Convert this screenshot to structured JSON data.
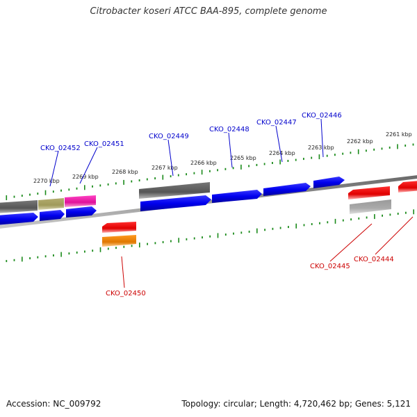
{
  "title": "Citrobacter koseri ATCC BAA-895, complete genome",
  "footer": {
    "accession": "Accession: NC_009792",
    "summary": "Topology: circular; Length: 4,720,462 bp; Genes: 5,121"
  },
  "colors": {
    "forward_label": "#0000cc",
    "reverse_label": "#cc0000",
    "ticks": "#1a8a1a",
    "backbone": "#808080"
  },
  "kbp_labels": [
    "2270 kbp",
    "2269 kbp",
    "2268 kbp",
    "2267 kbp",
    "2266 kbp",
    "2265 kbp",
    "2264 kbp",
    "2263 kbp",
    "2262 kbp",
    "2261 kbp"
  ],
  "forward_genes": [
    "CKO_02452",
    "CKO_02451",
    "CKO_02449",
    "CKO_02448",
    "CKO_02447",
    "CKO_02446"
  ],
  "reverse_genes": [
    "CKO_02450",
    "CKO_02445",
    "CKO_02444"
  ]
}
